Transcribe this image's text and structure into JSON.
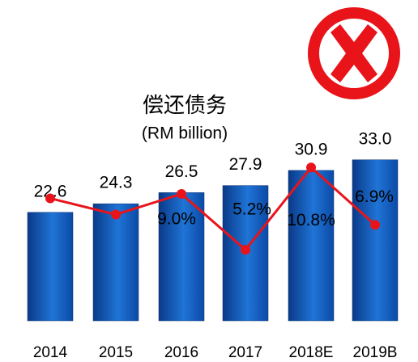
{
  "chart_data": {
    "type": "bar-line",
    "title": "偿还债务",
    "subtitle": "(RM billion)",
    "categories": [
      "2014",
      "2015",
      "2016",
      "2017",
      "2018E",
      "2019B"
    ],
    "series": [
      {
        "type": "bar",
        "color": "#1464c8",
        "values": [
          22.6,
          24.3,
          26.5,
          27.9,
          30.9,
          33.0
        ],
        "value_labels": [
          "22.6",
          "24.3",
          "26.5",
          "27.9",
          "30.9",
          "33.0"
        ]
      },
      {
        "type": "line",
        "color": "#e8141a",
        "values": [
          8.7,
          7.6,
          9.0,
          5.2,
          10.8,
          6.9
        ],
        "value_labels": [
          null,
          null,
          "9.0%",
          "5.2%",
          "10.8%",
          "6.9%"
        ]
      }
    ]
  }
}
